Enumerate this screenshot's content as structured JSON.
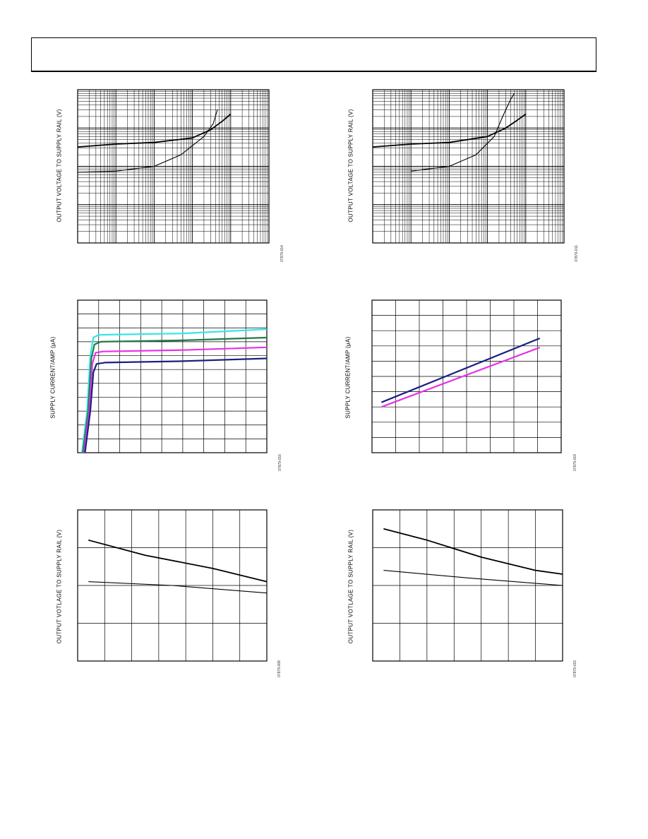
{
  "page": {
    "header_title": ""
  },
  "colors": {
    "black": "#000000",
    "cyan": "#33e6e6",
    "green": "#1f7a4a",
    "magenta": "#e633e6",
    "navy": "#1a2080"
  },
  "chart_data": [
    {
      "id": "fig-014",
      "type": "line",
      "ylabel": "OUTPUT VOLTAGE TO SUPPLY RAIL (V)",
      "figure_id": "07879-014",
      "xscale": "log",
      "yscale": "log",
      "grid": true,
      "xlim": [
        0.001,
        100
      ],
      "ylim": [
        0.001,
        10
      ],
      "series": [
        {
          "color": "black",
          "points": [
            [
              0.001,
              0.32
            ],
            [
              0.01,
              0.38
            ],
            [
              0.1,
              0.42
            ],
            [
              1,
              0.55
            ],
            [
              3,
              0.9
            ],
            [
              6,
              1.5
            ],
            [
              10,
              2.3
            ]
          ]
        },
        {
          "color": "black",
          "thin": true,
          "points": [
            [
              0.001,
              0.07
            ],
            [
              0.01,
              0.075
            ],
            [
              0.1,
              0.1
            ],
            [
              0.5,
              0.2
            ],
            [
              2,
              0.6
            ],
            [
              3.5,
              1.3
            ],
            [
              4.5,
              3.0
            ]
          ]
        }
      ]
    },
    {
      "id": "fig-011",
      "type": "line",
      "ylabel": "OUTPUT VOLTAGE TO SUPPLY RAIL (V)",
      "figure_id": "07879-011",
      "xscale": "log",
      "yscale": "log",
      "grid": true,
      "xlim": [
        0.001,
        100
      ],
      "ylim": [
        0.001,
        10
      ],
      "series": [
        {
          "color": "black",
          "points": [
            [
              0.001,
              0.32
            ],
            [
              0.01,
              0.38
            ],
            [
              0.1,
              0.42
            ],
            [
              1,
              0.6
            ],
            [
              3,
              1.0
            ],
            [
              6,
              1.6
            ],
            [
              10,
              2.3
            ]
          ]
        },
        {
          "color": "black",
          "thin": true,
          "points": [
            [
              0.01,
              0.075
            ],
            [
              0.1,
              0.1
            ],
            [
              0.5,
              0.2
            ],
            [
              1.5,
              0.6
            ],
            [
              2.5,
              2.0
            ],
            [
              4,
              5.5
            ],
            [
              5,
              8.0
            ]
          ]
        }
      ]
    },
    {
      "id": "fig-016",
      "type": "line",
      "ylabel": "SUPPLY CURRENT/AMP (μA)",
      "figure_id": "07879-016",
      "grid": true,
      "xlim": [
        0,
        9
      ],
      "ylim": [
        0,
        11
      ],
      "series": [
        {
          "color": "cyan",
          "points": [
            [
              0.2,
              0
            ],
            [
              0.45,
              3
            ],
            [
              0.6,
              7
            ],
            [
              0.75,
              8.3
            ],
            [
              1,
              8.5
            ],
            [
              5,
              8.6
            ],
            [
              9,
              8.9
            ]
          ]
        },
        {
          "color": "green",
          "points": [
            [
              0.25,
              0
            ],
            [
              0.5,
              3
            ],
            [
              0.65,
              6.8
            ],
            [
              0.8,
              7.8
            ],
            [
              1.1,
              8
            ],
            [
              5,
              8.1
            ],
            [
              9,
              8.3
            ]
          ]
        },
        {
          "color": "magenta",
          "points": [
            [
              0.3,
              0
            ],
            [
              0.55,
              3
            ],
            [
              0.7,
              6.4
            ],
            [
              0.85,
              7.2
            ],
            [
              1.2,
              7.3
            ],
            [
              5,
              7.4
            ],
            [
              9,
              7.6
            ]
          ]
        },
        {
          "color": "navy",
          "points": [
            [
              0.35,
              0
            ],
            [
              0.6,
              3
            ],
            [
              0.75,
              5.8
            ],
            [
              0.9,
              6.4
            ],
            [
              1.3,
              6.5
            ],
            [
              5,
              6.6
            ],
            [
              9,
              6.8
            ]
          ]
        }
      ]
    },
    {
      "id": "fig-019",
      "type": "line",
      "ylabel": "SUPPLY CURRENT/AMP (μA)",
      "figure_id": "07879-019",
      "grid": true,
      "xlim": [
        0,
        8
      ],
      "ylim": [
        0,
        10
      ],
      "series": [
        {
          "color": "navy",
          "points": [
            [
              0.4,
              3.3
            ],
            [
              7.1,
              7.5
            ]
          ]
        },
        {
          "color": "magenta",
          "points": [
            [
              0.4,
              3.0
            ],
            [
              7.1,
              6.9
            ]
          ]
        }
      ]
    },
    {
      "id": "fig-008",
      "type": "line",
      "ylabel": "OUTPUT VOTLAGE TO SUPPLY RAIL (V)",
      "figure_id": "07879-008",
      "grid": true,
      "xlim": [
        0,
        7
      ],
      "ylim": [
        0,
        4
      ],
      "series": [
        {
          "color": "black",
          "points": [
            [
              0.4,
              3.2
            ],
            [
              2.5,
              2.8
            ],
            [
              5,
              2.45
            ],
            [
              7,
              2.1
            ]
          ]
        },
        {
          "color": "black",
          "thin": true,
          "points": [
            [
              0.4,
              2.1
            ],
            [
              3.5,
              2.0
            ],
            [
              7,
              1.8
            ]
          ]
        }
      ]
    },
    {
      "id": "fig-015",
      "type": "line",
      "ylabel": "OUTPUT VOTLAGE TO SUPPLY RAIL (V)",
      "figure_id": "07879-015",
      "grid": true,
      "xlim": [
        0,
        7
      ],
      "ylim": [
        0,
        4
      ],
      "series": [
        {
          "color": "black",
          "points": [
            [
              0.4,
              3.5
            ],
            [
              2.0,
              3.2
            ],
            [
              4.0,
              2.75
            ],
            [
              6.0,
              2.4
            ],
            [
              7,
              2.3
            ]
          ]
        },
        {
          "color": "black",
          "thin": true,
          "points": [
            [
              0.4,
              2.4
            ],
            [
              3.5,
              2.2
            ],
            [
              7,
              2.0
            ]
          ]
        }
      ]
    }
  ]
}
